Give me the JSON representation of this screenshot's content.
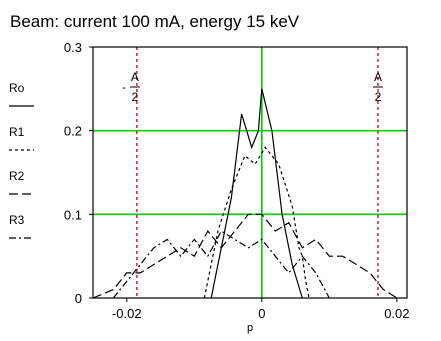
{
  "chart_data": {
    "type": "line",
    "title": "Beam: current 100 mA, energy 15 keV",
    "xlabel": "p",
    "ylabel": "",
    "xlim": [
      -0.025,
      0.0215
    ],
    "ylim": [
      0,
      0.3
    ],
    "x_ticks": [
      -0.02,
      0,
      0.02
    ],
    "x_tick_labels": [
      "-0.02",
      "0",
      "0.02"
    ],
    "y_ticks": [
      0,
      0.1,
      0.2,
      0.3
    ],
    "y_tick_labels": [
      "0",
      "0.1",
      "0.2",
      "0.3"
    ],
    "grid_x": [
      0
    ],
    "grid_y": [
      0.1,
      0.2
    ],
    "grid_color": "#00cc00",
    "aperture_lines": [
      -0.0185,
      0.0172
    ],
    "aperture_color": "#cc0000",
    "aperture_label_left": {
      "top": "A",
      "bottom": "2",
      "sign": "-"
    },
    "aperture_label_right": {
      "top": "A",
      "bottom": "2"
    },
    "legend_placement": "left",
    "series": [
      {
        "name": "Ro",
        "style": "solid",
        "x": [
          -0.0075,
          -0.0045,
          -0.003,
          -0.0015,
          -0.0005,
          0.0,
          0.0015,
          0.003,
          0.0045,
          0.006
        ],
        "y": [
          0.0,
          0.12,
          0.22,
          0.18,
          0.2,
          0.25,
          0.2,
          0.1,
          0.04,
          0.0
        ]
      },
      {
        "name": "R1",
        "style": "dashed",
        "x": [
          -0.0085,
          -0.0065,
          -0.0045,
          -0.0025,
          -0.001,
          0.0005,
          0.0025,
          0.0045,
          0.0055,
          0.006,
          0.0065,
          0.007
        ],
        "y": [
          0.0,
          0.08,
          0.13,
          0.17,
          0.16,
          0.18,
          0.16,
          0.11,
          0.06,
          0.05,
          0.02,
          0.0
        ]
      },
      {
        "name": "R2",
        "style": "longdash",
        "x": [
          -0.025,
          -0.022,
          -0.02,
          -0.018,
          -0.016,
          -0.014,
          -0.012,
          -0.01,
          -0.008,
          -0.006,
          -0.004,
          -0.002,
          0.0,
          0.002,
          0.004,
          0.006,
          0.008,
          0.01,
          0.012,
          0.014,
          0.016,
          0.018,
          0.02
        ],
        "y": [
          0.0,
          0.01,
          0.03,
          0.03,
          0.04,
          0.05,
          0.06,
          0.05,
          0.08,
          0.06,
          0.08,
          0.1,
          0.1,
          0.08,
          0.09,
          0.06,
          0.07,
          0.05,
          0.05,
          0.04,
          0.03,
          0.01,
          0.0
        ]
      },
      {
        "name": "R3",
        "style": "dashdot",
        "x": [
          -0.022,
          -0.02,
          -0.018,
          -0.016,
          -0.014,
          -0.012,
          -0.01,
          -0.008,
          -0.006,
          -0.004,
          -0.002,
          0.0,
          0.002,
          0.004,
          0.006,
          0.008,
          0.01
        ],
        "y": [
          0.0,
          0.02,
          0.04,
          0.06,
          0.07,
          0.05,
          0.07,
          0.05,
          0.08,
          0.07,
          0.06,
          0.07,
          0.05,
          0.03,
          0.05,
          0.03,
          0.0
        ]
      }
    ]
  }
}
